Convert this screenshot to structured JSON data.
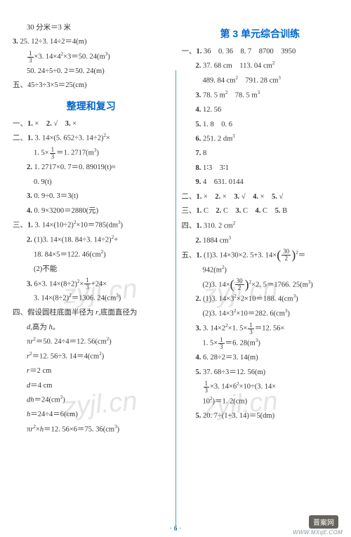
{
  "colors": {
    "heading": "#0066cc",
    "text": "#333333",
    "divider": "#4aa8a8",
    "watermark": "rgba(130,130,130,0.22)",
    "badge_bg": "#66635e",
    "badge_fg": "#ffffff",
    "footer": "#0066aa"
  },
  "left": {
    "pre": [
      "30 分米＝3 米",
      "3. 25. 12÷3. 14÷2＝4(m)",
      "FRAC13×3. 14×4²×3＝50. 24(m³)",
      "50. 24÷5÷0. 2＝50. 24(m)",
      "五、45÷3÷3×5＝25(cm)"
    ],
    "heading": "整理和复习",
    "lines": [
      "一、1. ×　2. √　3. ×",
      "二、1. 3. 14×(5. 652÷3. 14÷2)²×",
      "1. 5×FRAC13＝1. 2717(m³)",
      "2. 1. 2717×0. 7＝0. 89019(t)≈",
      "0. 9(t)",
      "3. 0. 9÷0. 3＝3(t)",
      "4. 0. 9×3200＝2880(元)",
      "三、1. 3. 14×(10÷2)²×10＝785(dm³)",
      "2. (1)3. 14×(18. 84÷3. 14÷2)²+",
      "18. 84×5＝122. 46(cm²)",
      "(2)不能",
      "3. 6×3. 14×(8÷2)²×FRAC13+24×",
      "3. 14×(8÷2)²＝1306. 24(cm³)",
      "四、假设圆柱底面半径为 r,底面直径为",
      "d,高为 h。",
      "πr²＝50. 24÷4＝12. 56(cm²)",
      "r²＝12. 56÷3. 14＝4(cm²)",
      "r＝2 cm",
      "d＝4 cm",
      "dh＝24(cm²)",
      "h＝24÷4＝6(cm)",
      "πr²×h＝12. 56×6＝75. 36(cm³)"
    ]
  },
  "right": {
    "heading": "第 3 单元综合训练",
    "lines": [
      "一、1. 36　0. 36　8. 7　8700　3950",
      "2. 37. 68 cm　113. 04 cm²",
      "489. 84 cm²　791. 28 cm³",
      "3. 78. 5 m²　78. 5 m³",
      "4. 12. 56",
      "5. 1. 8　0. 6",
      "6. 251. 2 dm³",
      "7. 8",
      "8. 1∶3　3∶1",
      "9. 4　631. 0144",
      "二、1. ×　2. ×　3. √　4. ×　5. √",
      "三、1. C　2. C　3. C　4. C　5. B",
      "四、1. 310. 2 cm²",
      "2. 1884 cm³",
      "五、1. (1)3. 14×30×2. 5+3. 14×PFRAC302²＝",
      "942(m²)",
      "(2)3. 14×PFRAC302²×2. 5＝1766. 25(m³)",
      "2. (1)3. 14×3²×2×10＝188. 4(cm³)",
      "(2)3. 14×3²×10＝282. 6(cm³)",
      "3. 3. 14×2²×1. 5×FRAC13＝12. 56×",
      "1. 5×FRAC13＝6. 28(m³)",
      "4. 6. 28÷2＝3. 14(m)",
      "5. 37. 68÷3＝12. 56(m)",
      "FRAC13×3. 14×6²×10÷(3. 14×",
      "10²)＝1. 2(cm)",
      "5. 20. 7÷(1+3. 14)＝5(dm)"
    ]
  },
  "watermark": "zyjl.cn",
  "footer": "· 6 ·",
  "badge": "晋案网",
  "url": "WWW.MXqE.COM"
}
